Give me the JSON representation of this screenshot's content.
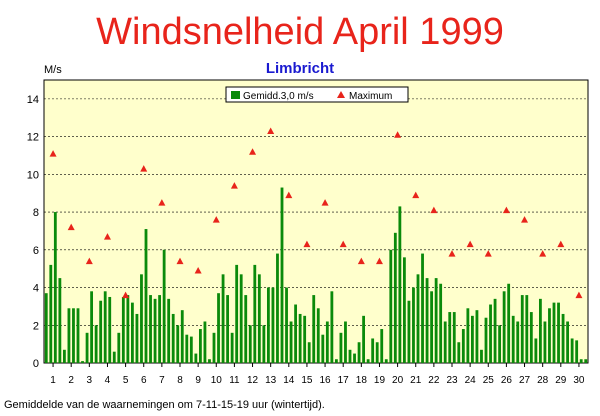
{
  "chart_data": {
    "type": "bar",
    "title": "Windsnelheid April 1999",
    "subtitle": "Limbricht",
    "ylabel": "M/s",
    "footnote": "Gemiddelde van de waarnemingen om 7-11-15-19 uur (wintertijd).",
    "ylim": [
      0,
      15
    ],
    "yticks": [
      "0",
      "2",
      "4",
      "6",
      "8",
      "10",
      "12",
      "14"
    ],
    "xticks": [
      "1",
      "2",
      "3",
      "4",
      "5",
      "6",
      "7",
      "8",
      "9",
      "10",
      "11",
      "12",
      "13",
      "14",
      "15",
      "16",
      "17",
      "18",
      "19",
      "20",
      "21",
      "22",
      "23",
      "24",
      "25",
      "26",
      "27",
      "28",
      "29",
      "30"
    ],
    "grid": true,
    "legend_position": "top-center",
    "colors": {
      "bars": "#0a8a0a",
      "maximum": "#e8241b",
      "plot_bg": "#ffffcc",
      "title": "#e8241b",
      "subtitle": "#1a1ad0"
    },
    "series": [
      {
        "name": "Gemidd.3,0 m/s",
        "type": "bar",
        "values": [
          3.7,
          5.2,
          8.0,
          4.5,
          0.7,
          2.9,
          2.9,
          2.9,
          0.1,
          1.6,
          3.8,
          2.0,
          3.3,
          3.8,
          3.5,
          0.6,
          1.6,
          3.5,
          3.6,
          3.2,
          2.6,
          4.7,
          7.1,
          3.6,
          3.4,
          3.6,
          6.0,
          3.4,
          2.6,
          2.0,
          2.8,
          1.5,
          1.4,
          0.5,
          1.8,
          2.2,
          0.2,
          1.6,
          3.7,
          4.7,
          3.6,
          1.6,
          5.2,
          4.7,
          3.6,
          2.0,
          5.2,
          4.7,
          2.0,
          4.0,
          4.0,
          5.8,
          9.3,
          4.0,
          2.2,
          3.1,
          2.6,
          2.5,
          1.1,
          3.6,
          2.9,
          1.5,
          2.2,
          3.8,
          0.2,
          1.6,
          2.2,
          0.7,
          0.5,
          1.1,
          2.5,
          0.2,
          1.3,
          1.1,
          1.8,
          0.2,
          6.0,
          6.9,
          8.3,
          5.6,
          3.3,
          4.0,
          4.7,
          5.8,
          4.5,
          3.8,
          4.5,
          4.2,
          2.2,
          2.7,
          2.7,
          1.1,
          1.8,
          2.9,
          2.5,
          2.8,
          0.7,
          2.4,
          3.1,
          3.4,
          2.0,
          3.8,
          4.2,
          2.5,
          2.2,
          3.6,
          3.6,
          2.7,
          1.3,
          3.4,
          2.2,
          2.9,
          3.2,
          3.2,
          2.6,
          2.2,
          1.3,
          1.2,
          0.2,
          0.2
        ]
      },
      {
        "name": "Maximum",
        "type": "scatter",
        "x": [
          1,
          2,
          3,
          4,
          5,
          6,
          7,
          8,
          9,
          10,
          11,
          12,
          13,
          14,
          15,
          16,
          17,
          18,
          19,
          20,
          21,
          22,
          23,
          24,
          25,
          26,
          27,
          28,
          29,
          30
        ],
        "values": [
          11.1,
          7.2,
          5.4,
          6.7,
          3.6,
          10.3,
          8.5,
          5.4,
          4.9,
          7.6,
          9.4,
          11.2,
          12.3,
          8.9,
          6.3,
          8.5,
          6.3,
          5.4,
          5.4,
          12.1,
          8.9,
          8.1,
          5.8,
          6.3,
          5.8,
          8.1,
          7.6,
          5.8,
          6.3,
          3.6
        ]
      }
    ]
  }
}
